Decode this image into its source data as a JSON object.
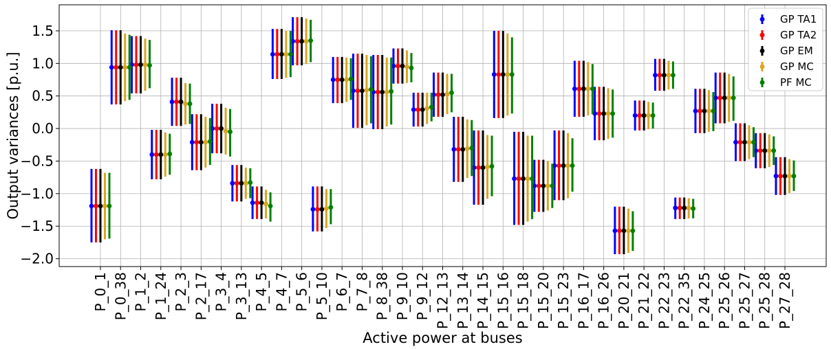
{
  "chart_data": {
    "type": "errorbar",
    "xlabel": "Active power at buses",
    "ylabel": "Output variances [p.u.]",
    "ylim": [
      -2.12,
      1.9
    ],
    "yticks": [
      -2.0,
      -1.5,
      -1.0,
      -0.5,
      0.0,
      0.5,
      1.0,
      1.5
    ],
    "ytick_labels": [
      "−2.0",
      "−1.5",
      "−1.0",
      "−0.5",
      "0.0",
      "0.5",
      "1.0",
      "1.5"
    ],
    "grid": true,
    "legend_position": "top-right",
    "categories": [
      "P_0_1",
      "P_0_38",
      "P_1_2",
      "P_1_24",
      "P_2_3",
      "P_2_17",
      "P_3_4",
      "P_3_13",
      "P_4_5",
      "P_4_7",
      "P_5_6",
      "P_5_10",
      "P_6_7",
      "P_7_8",
      "P_8_38",
      "P_9_10",
      "P_9_12",
      "P_12_13",
      "P_13_14",
      "P_14_15",
      "P_15_16",
      "P_15_18",
      "P_15_20",
      "P_15_23",
      "P_16_17",
      "P_16_26",
      "P_20_21",
      "P_21_22",
      "P_22_23",
      "P_22_35",
      "P_24_25",
      "P_25_26",
      "P_25_27",
      "P_25_28",
      "P_27_28"
    ],
    "series": [
      {
        "name": "GP TA1",
        "color": "#0000ff",
        "means": [
          -1.19,
          0.94,
          0.98,
          -0.4,
          0.41,
          -0.21,
          0.0,
          -0.84,
          -1.14,
          1.14,
          1.34,
          -1.24,
          0.75,
          0.58,
          0.56,
          0.96,
          0.29,
          0.52,
          -0.32,
          -0.6,
          0.83,
          -0.77,
          -0.88,
          -0.57,
          0.61,
          0.23,
          -1.57,
          0.2,
          0.82,
          -1.22,
          0.27,
          0.47,
          -0.21,
          -0.34,
          -0.73
        ],
        "lower": [
          -1.75,
          0.37,
          0.54,
          -0.78,
          0.04,
          -0.64,
          -0.38,
          -1.12,
          -1.39,
          0.76,
          0.97,
          -1.58,
          0.39,
          0.01,
          -0.01,
          0.69,
          0.03,
          0.18,
          -0.82,
          -1.17,
          0.16,
          -1.48,
          -1.28,
          -1.1,
          0.18,
          -0.18,
          -1.93,
          -0.03,
          0.58,
          -1.39,
          -0.07,
          0.08,
          -0.5,
          -0.61,
          -1.02
        ],
        "upper": [
          -0.62,
          1.51,
          1.42,
          -0.02,
          0.78,
          0.22,
          0.38,
          -0.56,
          -0.89,
          1.53,
          1.71,
          -0.89,
          1.1,
          1.15,
          1.13,
          1.23,
          0.55,
          0.86,
          0.18,
          -0.03,
          1.5,
          -0.05,
          -0.48,
          -0.03,
          1.04,
          0.64,
          -1.2,
          0.43,
          1.07,
          -1.06,
          0.61,
          0.86,
          0.08,
          -0.07,
          -0.44
        ]
      },
      {
        "name": "GP TA2",
        "color": "#ff0000",
        "means": [
          -1.19,
          0.94,
          0.98,
          -0.4,
          0.41,
          -0.21,
          0.0,
          -0.84,
          -1.14,
          1.14,
          1.34,
          -1.24,
          0.75,
          0.58,
          0.56,
          0.96,
          0.29,
          0.52,
          -0.32,
          -0.6,
          0.83,
          -0.77,
          -0.88,
          -0.57,
          0.61,
          0.23,
          -1.57,
          0.2,
          0.82,
          -1.22,
          0.27,
          0.47,
          -0.21,
          -0.34,
          -0.73
        ],
        "lower": [
          -1.75,
          0.37,
          0.54,
          -0.78,
          0.04,
          -0.64,
          -0.38,
          -1.12,
          -1.39,
          0.76,
          0.97,
          -1.58,
          0.39,
          0.01,
          -0.01,
          0.69,
          0.03,
          0.18,
          -0.82,
          -1.17,
          0.16,
          -1.48,
          -1.28,
          -1.1,
          0.18,
          -0.18,
          -1.93,
          -0.03,
          0.58,
          -1.39,
          -0.07,
          0.08,
          -0.5,
          -0.61,
          -1.02
        ],
        "upper": [
          -0.62,
          1.51,
          1.42,
          -0.02,
          0.78,
          0.22,
          0.38,
          -0.56,
          -0.89,
          1.53,
          1.71,
          -0.89,
          1.1,
          1.15,
          1.13,
          1.23,
          0.55,
          0.86,
          0.18,
          -0.03,
          1.5,
          -0.05,
          -0.48,
          -0.03,
          1.04,
          0.64,
          -1.2,
          0.43,
          1.07,
          -1.06,
          0.61,
          0.86,
          0.08,
          -0.07,
          -0.44
        ]
      },
      {
        "name": "GP EM",
        "color": "#000000",
        "means": [
          -1.19,
          0.94,
          0.98,
          -0.4,
          0.41,
          -0.21,
          0.0,
          -0.84,
          -1.14,
          1.14,
          1.34,
          -1.24,
          0.75,
          0.58,
          0.56,
          0.96,
          0.29,
          0.52,
          -0.32,
          -0.6,
          0.83,
          -0.77,
          -0.88,
          -0.57,
          0.61,
          0.23,
          -1.57,
          0.2,
          0.82,
          -1.22,
          0.27,
          0.47,
          -0.21,
          -0.34,
          -0.73
        ],
        "lower": [
          -1.75,
          0.37,
          0.54,
          -0.78,
          0.04,
          -0.64,
          -0.38,
          -1.12,
          -1.39,
          0.76,
          0.97,
          -1.58,
          0.39,
          0.01,
          -0.01,
          0.69,
          0.03,
          0.18,
          -0.82,
          -1.17,
          0.16,
          -1.48,
          -1.28,
          -1.1,
          0.18,
          -0.18,
          -1.93,
          -0.03,
          0.58,
          -1.39,
          -0.07,
          0.08,
          -0.5,
          -0.61,
          -1.02
        ],
        "upper": [
          -0.62,
          1.51,
          1.42,
          -0.02,
          0.78,
          0.22,
          0.38,
          -0.56,
          -0.89,
          1.53,
          1.71,
          -0.89,
          1.1,
          1.15,
          1.13,
          1.23,
          0.55,
          0.86,
          0.18,
          -0.03,
          1.5,
          -0.05,
          -0.48,
          -0.03,
          1.04,
          0.64,
          -1.2,
          0.43,
          1.07,
          -1.06,
          0.61,
          0.86,
          0.08,
          -0.07,
          -0.44
        ]
      },
      {
        "name": "GP MC",
        "color": "#daa520",
        "means": [
          -1.19,
          0.94,
          0.98,
          -0.4,
          0.38,
          -0.21,
          -0.04,
          -0.84,
          -1.16,
          1.14,
          1.34,
          -1.23,
          0.75,
          0.59,
          0.56,
          0.95,
          0.31,
          0.53,
          -0.31,
          -0.59,
          0.83,
          -0.77,
          -0.88,
          -0.57,
          0.61,
          0.23,
          -1.57,
          0.2,
          0.82,
          -1.22,
          0.27,
          0.47,
          -0.21,
          -0.34,
          -0.73
        ],
        "lower": [
          -1.7,
          0.42,
          0.58,
          -0.74,
          0.06,
          -0.6,
          -0.4,
          -1.08,
          -1.38,
          0.78,
          0.99,
          -1.53,
          0.41,
          0.05,
          0.03,
          0.7,
          0.07,
          0.22,
          -0.76,
          -1.08,
          0.2,
          -1.43,
          -1.26,
          -1.07,
          0.2,
          -0.16,
          -1.91,
          -0.01,
          0.6,
          -1.38,
          -0.05,
          0.1,
          -0.47,
          -0.59,
          -0.99
        ],
        "upper": [
          -0.68,
          1.46,
          1.38,
          -0.06,
          0.7,
          0.18,
          0.32,
          -0.6,
          -0.94,
          1.5,
          1.69,
          -0.93,
          1.09,
          1.13,
          1.09,
          1.2,
          0.55,
          0.84,
          0.14,
          -0.1,
          1.46,
          -0.11,
          -0.5,
          -0.07,
          1.02,
          0.62,
          -1.23,
          0.41,
          1.04,
          -1.07,
          0.59,
          0.84,
          0.05,
          -0.09,
          -0.47
        ]
      },
      {
        "name": "PF MC",
        "color": "#008000",
        "means": [
          -1.19,
          0.94,
          0.97,
          -0.39,
          0.38,
          -0.2,
          -0.05,
          -0.83,
          -1.19,
          1.14,
          1.35,
          -1.21,
          0.76,
          0.6,
          0.57,
          0.93,
          0.33,
          0.55,
          -0.3,
          -0.58,
          0.83,
          -0.77,
          -0.88,
          -0.57,
          0.61,
          0.23,
          -1.57,
          0.2,
          0.82,
          -1.23,
          0.27,
          0.47,
          -0.21,
          -0.34,
          -0.73
        ],
        "lower": [
          -1.69,
          0.44,
          0.62,
          -0.71,
          0.07,
          -0.56,
          -0.43,
          -1.07,
          -1.43,
          0.79,
          1.02,
          -1.47,
          0.44,
          0.08,
          0.06,
          0.71,
          0.11,
          0.25,
          -0.73,
          -1.04,
          0.23,
          -1.39,
          -1.22,
          -0.97,
          0.22,
          -0.14,
          -1.88,
          0.0,
          0.61,
          -1.38,
          -0.04,
          0.12,
          -0.44,
          -0.56,
          -0.96
        ],
        "upper": [
          -0.68,
          1.44,
          1.36,
          -0.08,
          0.69,
          0.16,
          0.3,
          -0.61,
          -0.98,
          1.5,
          1.67,
          -0.93,
          1.08,
          1.11,
          1.09,
          1.16,
          0.55,
          0.84,
          0.13,
          -0.11,
          1.4,
          -0.11,
          -0.54,
          -0.15,
          0.99,
          0.6,
          -1.27,
          0.4,
          1.03,
          -1.08,
          0.56,
          0.8,
          0.02,
          -0.12,
          -0.49
        ]
      }
    ]
  }
}
